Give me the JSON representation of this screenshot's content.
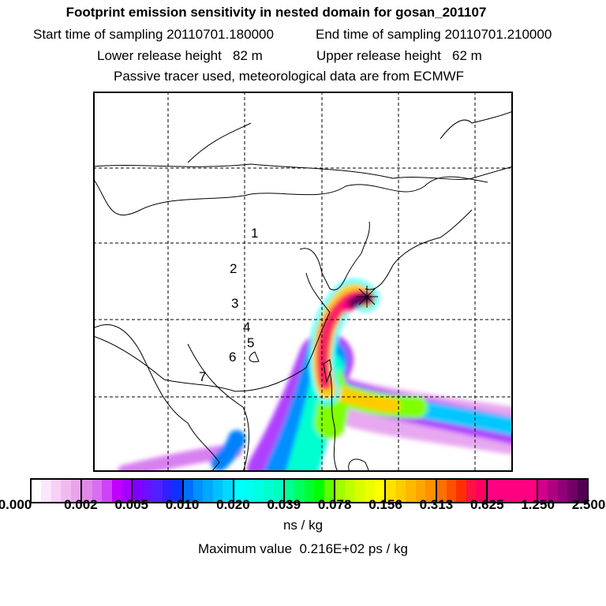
{
  "header": {
    "title": "Footprint emission sensitivity in nested domain for gosan_201107",
    "start_label": "Start time of sampling 20110701.180000",
    "end_label": "End time of sampling 20110701.210000",
    "lower_label": "Lower release height   82 m",
    "upper_label": "Upper release height   62 m",
    "info": "Passive tracer used, meteorological data are from ECMWF"
  },
  "map": {
    "receptor_icon": "star-marker-icon",
    "day_labels": [
      "1",
      "2",
      "3",
      "4",
      "5",
      "6",
      "7"
    ]
  },
  "colorbar": {
    "ticks": [
      "0.000",
      "0.002",
      "0.005",
      "0.010",
      "0.020",
      "0.039",
      "0.078",
      "0.156",
      "0.313",
      "0.625",
      "1.250",
      "2.500"
    ],
    "segments": [
      [
        "#ffffff",
        "#fbe6fb",
        "#f6d0f6",
        "#f0baf0",
        "#eaa4ea"
      ],
      [
        "#e08ae8",
        "#d86ef0",
        "#cc44f4",
        "#c000ff",
        "#a800ff"
      ],
      [
        "#8000ff",
        "#6a10ff",
        "#5020ff",
        "#3020ff",
        "#1030ff"
      ],
      [
        "#0070ff",
        "#0090ff",
        "#00a8ff",
        "#00c0ff",
        "#00d8ff"
      ],
      [
        "#00ffff",
        "#00fff0",
        "#00ffe0",
        "#00ffd0",
        "#00ffc0"
      ],
      [
        "#00ff90",
        "#00ff60",
        "#00ff30",
        "#00ff00",
        "#60ff00"
      ],
      [
        "#a0ff00",
        "#c0ff00",
        "#d8ff00",
        "#ecff00",
        "#ffff00"
      ],
      [
        "#ffe000",
        "#ffcc00",
        "#ffb800",
        "#ffa400",
        "#ff9000"
      ],
      [
        "#ff7000",
        "#ff5000",
        "#ff3000",
        "#ff1040",
        "#ff0060"
      ],
      [
        "#ff0080",
        "#ff0080",
        "#ff0080",
        "#ff0080",
        "#ff0080"
      ],
      [
        "#d0008a",
        "#b00080",
        "#900078",
        "#700068",
        "#500050"
      ]
    ],
    "unit": "ns / kg",
    "max_label": "Maximum value  0.216E+02 ps / kg"
  }
}
